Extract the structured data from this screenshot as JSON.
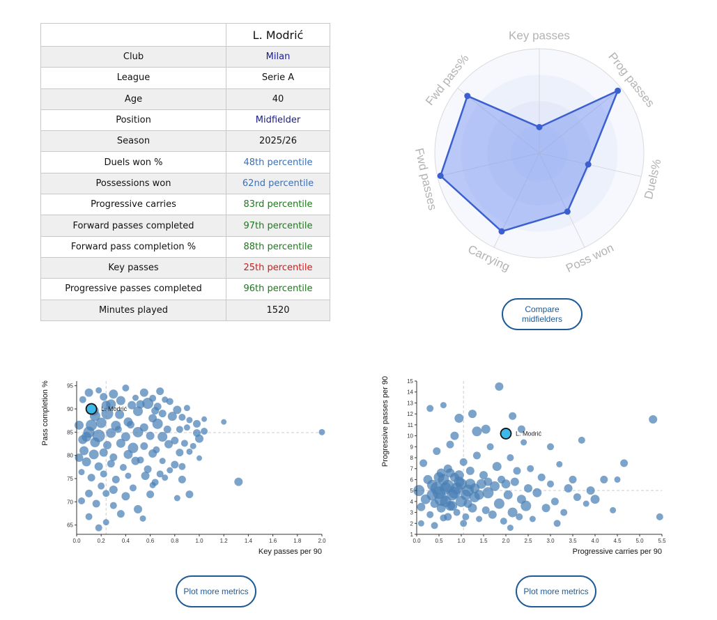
{
  "player_table": {
    "player_name": "L. Modrić",
    "rows": [
      {
        "label": "Club",
        "value": "Milan",
        "color": "#1a1a8c"
      },
      {
        "label": "League",
        "value": "Serie A",
        "color": "#111111"
      },
      {
        "label": "Age",
        "value": "40",
        "color": "#111111"
      },
      {
        "label": "Position",
        "value": "Midfielder",
        "color": "#1a1a8c"
      },
      {
        "label": "Season",
        "value": "2025/26",
        "color": "#111111"
      },
      {
        "label": "Duels won %",
        "value": "48th percentile",
        "color": "#3a6fb8"
      },
      {
        "label": "Possessions won",
        "value": "62nd percentile",
        "color": "#3a6fb8"
      },
      {
        "label": "Progressive carries",
        "value": "83rd percentile",
        "color": "#1a7a1a"
      },
      {
        "label": "Forward passes completed",
        "value": "97th percentile",
        "color": "#1a7a1a"
      },
      {
        "label": "Forward pass completion %",
        "value": "88th percentile",
        "color": "#1a7a1a"
      },
      {
        "label": "Key passes",
        "value": "25th percentile",
        "color": "#d11a1a"
      },
      {
        "label": "Progressive passes completed",
        "value": "96th percentile",
        "color": "#1a7a1a"
      },
      {
        "label": "Minutes played",
        "value": "1520",
        "color": "#111111"
      }
    ]
  },
  "buttons": {
    "compare_label": "Compare midfielders",
    "plot_more_left_label": "Plot more metrics",
    "plot_more_right_label": "Plot more metrics"
  },
  "colors": {
    "radar_line": "#3b5fcf",
    "radar_fill": "#6f8ff0",
    "bubble": "#4a7fb6",
    "highlight": "#3db8e8",
    "button": "#1d5a96"
  },
  "chart_data": [
    {
      "type": "radar",
      "title": "",
      "axes": [
        "Key passes",
        "Prog passes",
        "Duels%",
        "Poss won",
        "Carrying",
        "Fwd passes",
        "Fwd pass%"
      ],
      "range": [
        0,
        100
      ],
      "values": [
        25,
        96,
        48,
        62,
        83,
        97,
        88
      ]
    },
    {
      "type": "scatter",
      "xlabel": "Key passes per 90",
      "ylabel": "Pass completion %",
      "xlim": [
        0,
        2.0
      ],
      "ylim": [
        63,
        96
      ],
      "xticks": [
        "0.0",
        "0.2",
        "0.4",
        "0.6",
        "0.8",
        "1.0",
        "1.2",
        "1.4",
        "1.6",
        "1.8",
        "2.0"
      ],
      "yticks": [
        "65",
        "70",
        "75",
        "80",
        "85",
        "90",
        "95"
      ],
      "reference_x": 0.24,
      "reference_y": 84.9,
      "highlight": {
        "label": "L. Modrić",
        "x": 0.12,
        "y": 90.0
      },
      "points": [
        [
          0.05,
          92.0
        ],
        [
          0.1,
          93.5
        ],
        [
          0.18,
          94.0
        ],
        [
          0.22,
          92.6
        ],
        [
          0.3,
          93.2
        ],
        [
          0.4,
          94.5
        ],
        [
          0.48,
          92.4
        ],
        [
          0.55,
          93.5
        ],
        [
          0.68,
          93.8
        ],
        [
          0.62,
          92.3
        ],
        [
          0.72,
          92.0
        ],
        [
          0.28,
          91.0
        ],
        [
          0.36,
          91.8
        ],
        [
          0.45,
          90.8
        ],
        [
          0.58,
          91.2
        ],
        [
          0.66,
          90.5
        ],
        [
          0.76,
          91.6
        ],
        [
          0.82,
          89.8
        ],
        [
          0.9,
          90.2
        ],
        [
          0.15,
          88.5
        ],
        [
          0.25,
          89.0
        ],
        [
          0.35,
          88.8
        ],
        [
          0.5,
          89.5
        ],
        [
          0.62,
          88.0
        ],
        [
          0.7,
          89.0
        ],
        [
          0.78,
          88.4
        ],
        [
          0.86,
          88.2
        ],
        [
          0.92,
          87.6
        ],
        [
          0.98,
          86.8
        ],
        [
          1.04,
          87.8
        ],
        [
          0.12,
          86.5
        ],
        [
          0.2,
          87.0
        ],
        [
          0.32,
          86.4
        ],
        [
          0.42,
          87.2
        ],
        [
          0.55,
          86.0
        ],
        [
          0.66,
          86.8
        ],
        [
          0.74,
          85.6
        ],
        [
          0.84,
          85.6
        ],
        [
          0.9,
          86.0
        ],
        [
          0.98,
          84.8
        ],
        [
          1.2,
          87.2
        ],
        [
          1.04,
          85.2
        ],
        [
          0.1,
          85.0
        ],
        [
          0.18,
          84.2
        ],
        [
          0.28,
          84.8
        ],
        [
          0.4,
          84.0
        ],
        [
          0.5,
          85.0
        ],
        [
          0.6,
          84.2
        ],
        [
          0.7,
          84.0
        ],
        [
          0.8,
          83.2
        ],
        [
          0.88,
          82.6
        ],
        [
          0.95,
          82.0
        ],
        [
          1.0,
          83.6
        ],
        [
          0.05,
          83.4
        ],
        [
          0.15,
          82.8
        ],
        [
          0.25,
          82.2
        ],
        [
          0.36,
          82.6
        ],
        [
          0.46,
          81.6
        ],
        [
          0.55,
          82.0
        ],
        [
          0.65,
          81.2
        ],
        [
          0.75,
          82.4
        ],
        [
          0.84,
          80.6
        ],
        [
          0.92,
          80.8
        ],
        [
          1.0,
          79.4
        ],
        [
          0.06,
          81.0
        ],
        [
          0.14,
          80.2
        ],
        [
          0.22,
          80.6
        ],
        [
          0.3,
          79.6
        ],
        [
          0.42,
          80.2
        ],
        [
          0.52,
          79.0
        ],
        [
          0.62,
          80.4
        ],
        [
          0.7,
          78.8
        ],
        [
          0.8,
          78.0
        ],
        [
          0.08,
          78.6
        ],
        [
          0.18,
          77.6
        ],
        [
          0.28,
          78.2
        ],
        [
          0.38,
          77.4
        ],
        [
          0.48,
          78.8
        ],
        [
          0.58,
          77.0
        ],
        [
          0.68,
          76.0
        ],
        [
          0.76,
          76.8
        ],
        [
          0.86,
          77.6
        ],
        [
          0.04,
          76.4
        ],
        [
          0.12,
          75.2
        ],
        [
          0.22,
          76.0
        ],
        [
          0.32,
          74.8
        ],
        [
          0.42,
          75.6
        ],
        [
          0.56,
          75.6
        ],
        [
          0.64,
          74.2
        ],
        [
          0.72,
          75.2
        ],
        [
          0.86,
          74.8
        ],
        [
          0.2,
          73.4
        ],
        [
          0.3,
          72.6
        ],
        [
          0.46,
          73.0
        ],
        [
          0.62,
          73.6
        ],
        [
          0.1,
          71.8
        ],
        [
          0.24,
          71.8
        ],
        [
          0.4,
          71.2
        ],
        [
          0.6,
          71.6
        ],
        [
          0.92,
          71.6
        ],
        [
          0.82,
          70.8
        ],
        [
          0.04,
          70.2
        ],
        [
          0.16,
          69.6
        ],
        [
          0.3,
          69.2
        ],
        [
          0.5,
          68.4
        ],
        [
          0.1,
          66.8
        ],
        [
          0.24,
          65.6
        ],
        [
          0.36,
          67.4
        ],
        [
          0.54,
          66.4
        ],
        [
          0.18,
          64.4
        ],
        [
          1.32,
          74.3
        ],
        [
          2.0,
          85.0
        ],
        [
          0.02,
          86.5
        ],
        [
          0.08,
          84.0
        ],
        [
          0.02,
          79.5
        ],
        [
          0.34,
          85.6
        ],
        [
          0.44,
          86.6
        ],
        [
          0.14,
          89.6
        ],
        [
          0.24,
          90.8
        ],
        [
          0.52,
          91.0
        ],
        [
          0.64,
          89.6
        ]
      ],
      "sizes": [
        6,
        8,
        5,
        7,
        9,
        6,
        5,
        8,
        7,
        6,
        5,
        10,
        9,
        8,
        12,
        7,
        6,
        8,
        5,
        11,
        13,
        9,
        10,
        8,
        7,
        9,
        6,
        5,
        7,
        4,
        12,
        11,
        10,
        9,
        8,
        11,
        7,
        6,
        5,
        7,
        4,
        6,
        12,
        14,
        10,
        9,
        11,
        8,
        10,
        7,
        6,
        5,
        8,
        9,
        10,
        8,
        9,
        11,
        7,
        6,
        8,
        7,
        5,
        4,
        9,
        10,
        8,
        7,
        9,
        6,
        8,
        5,
        7,
        9,
        8,
        7,
        6,
        8,
        7,
        6,
        5,
        6,
        5,
        7,
        6,
        7,
        5,
        8,
        6,
        5,
        7,
        6,
        8,
        6,
        5,
        7,
        6,
        8,
        7,
        7,
        5,
        6,
        7,
        6,
        8,
        6,
        5,
        7,
        5,
        6,
        8,
        5,
        9,
        10,
        8,
        6,
        7,
        10,
        9,
        8,
        7
      ]
    },
    {
      "type": "scatter",
      "xlabel": "Progressive carries per 90",
      "ylabel": "Progressive passes per 90",
      "xlim": [
        0,
        5.5
      ],
      "ylim": [
        1,
        15
      ],
      "xticks": [
        "0.0",
        "0.5",
        "1.0",
        "1.5",
        "2.0",
        "2.5",
        "3.0",
        "3.5",
        "4.0",
        "4.5",
        "5.0",
        "5.5"
      ],
      "yticks": [
        "1",
        "2",
        "3",
        "4",
        "5",
        "6",
        "7",
        "8",
        "9",
        "10",
        "11",
        "12",
        "13",
        "14",
        "15"
      ],
      "reference_x": 1.05,
      "reference_y": 5.0,
      "highlight": {
        "label": "L. Modrić",
        "x": 2.0,
        "y": 10.2
      },
      "points": [
        [
          0.05,
          5.0
        ],
        [
          0.1,
          3.5
        ],
        [
          0.15,
          7.5
        ],
        [
          0.2,
          4.2
        ],
        [
          0.25,
          6.0
        ],
        [
          0.3,
          2.8
        ],
        [
          0.35,
          5.5
        ],
        [
          0.4,
          3.8
        ],
        [
          0.45,
          8.6
        ],
        [
          0.5,
          4.8
        ],
        [
          0.55,
          6.6
        ],
        [
          0.6,
          2.5
        ],
        [
          0.65,
          5.2
        ],
        [
          0.7,
          7.0
        ],
        [
          0.75,
          3.6
        ],
        [
          0.8,
          4.6
        ],
        [
          0.85,
          6.2
        ],
        [
          0.9,
          3.0
        ],
        [
          0.95,
          5.8
        ],
        [
          1.0,
          4.0
        ],
        [
          1.05,
          7.6
        ],
        [
          1.1,
          2.6
        ],
        [
          1.15,
          5.0
        ],
        [
          1.2,
          6.8
        ],
        [
          1.25,
          3.4
        ],
        [
          1.3,
          4.4
        ],
        [
          1.35,
          8.2
        ],
        [
          1.4,
          2.4
        ],
        [
          1.45,
          5.6
        ],
        [
          1.5,
          6.4
        ],
        [
          1.55,
          3.2
        ],
        [
          1.6,
          4.8
        ],
        [
          1.65,
          9.0
        ],
        [
          1.7,
          2.8
        ],
        [
          1.75,
          5.4
        ],
        [
          1.8,
          7.2
        ],
        [
          1.85,
          3.8
        ],
        [
          1.9,
          6.0
        ],
        [
          1.95,
          2.2
        ],
        [
          2.05,
          4.6
        ],
        [
          2.1,
          8.0
        ],
        [
          2.15,
          3.0
        ],
        [
          2.2,
          5.8
        ],
        [
          2.25,
          6.8
        ],
        [
          2.3,
          2.6
        ],
        [
          2.35,
          4.2
        ],
        [
          2.4,
          9.4
        ],
        [
          2.45,
          3.6
        ],
        [
          2.5,
          5.2
        ],
        [
          2.55,
          7.0
        ],
        [
          2.6,
          2.4
        ],
        [
          2.7,
          4.8
        ],
        [
          2.8,
          6.2
        ],
        [
          2.9,
          3.4
        ],
        [
          3.0,
          5.6
        ],
        [
          3.1,
          4.0
        ],
        [
          3.2,
          7.4
        ],
        [
          3.3,
          3.0
        ],
        [
          3.4,
          5.2
        ],
        [
          3.5,
          6.0
        ],
        [
          3.6,
          4.4
        ],
        [
          3.7,
          9.6
        ],
        [
          3.8,
          3.8
        ],
        [
          3.9,
          5.0
        ],
        [
          4.0,
          4.2
        ],
        [
          4.2,
          6.0
        ],
        [
          0.6,
          12.8
        ],
        [
          0.95,
          11.6
        ],
        [
          1.25,
          12.0
        ],
        [
          1.85,
          14.5
        ],
        [
          2.15,
          11.8
        ],
        [
          1.55,
          10.6
        ],
        [
          0.85,
          10.0
        ],
        [
          1.35,
          10.4
        ],
        [
          0.3,
          12.5
        ],
        [
          2.35,
          10.6
        ],
        [
          3.0,
          9.0
        ],
        [
          5.3,
          11.5
        ],
        [
          4.65,
          7.5
        ],
        [
          4.4,
          3.2
        ],
        [
          5.45,
          2.6
        ],
        [
          4.5,
          6.0
        ],
        [
          3.15,
          2.0
        ],
        [
          2.1,
          1.6
        ],
        [
          1.05,
          2.0
        ],
        [
          0.4,
          1.8
        ],
        [
          0.1,
          2.0
        ],
        [
          0.75,
          9.2
        ],
        [
          0.55,
          4.2
        ],
        [
          0.7,
          5.4
        ],
        [
          0.85,
          4.8
        ],
        [
          1.0,
          5.6
        ],
        [
          0.45,
          5.2
        ],
        [
          0.6,
          6.0
        ],
        [
          0.9,
          5.2
        ],
        [
          1.1,
          4.6
        ],
        [
          0.35,
          4.6
        ],
        [
          0.8,
          3.6
        ],
        [
          1.2,
          5.6
        ],
        [
          0.65,
          4.0
        ],
        [
          0.95,
          6.4
        ],
        [
          0.5,
          6.2
        ],
        [
          1.3,
          5.2
        ],
        [
          0.75,
          6.6
        ],
        [
          1.4,
          4.6
        ],
        [
          0.55,
          3.4
        ],
        [
          1.6,
          5.8
        ],
        [
          0.7,
          2.6
        ],
        [
          1.15,
          3.8
        ],
        [
          2.0,
          5.6
        ]
      ],
      "sizes": [
        12,
        8,
        7,
        10,
        9,
        6,
        11,
        8,
        7,
        14,
        9,
        6,
        13,
        8,
        10,
        12,
        9,
        6,
        11,
        12,
        7,
        6,
        13,
        8,
        9,
        11,
        7,
        5,
        10,
        8,
        7,
        12,
        6,
        8,
        10,
        9,
        11,
        7,
        6,
        9,
        6,
        10,
        8,
        7,
        6,
        9,
        5,
        11,
        8,
        6,
        5,
        9,
        7,
        8,
        6,
        7,
        5,
        6,
        8,
        7,
        7,
        6,
        5,
        8,
        9,
        7,
        5,
        9,
        8,
        8,
        7,
        9,
        8,
        10,
        6,
        7,
        6,
        8,
        7,
        5,
        6,
        5,
        6,
        5,
        6,
        6,
        5,
        7,
        15,
        14,
        13,
        12,
        14,
        12,
        13,
        11,
        12,
        10,
        11,
        12,
        10,
        11,
        10,
        9,
        10,
        9,
        8,
        7,
        8,
        9
      ]
    }
  ]
}
